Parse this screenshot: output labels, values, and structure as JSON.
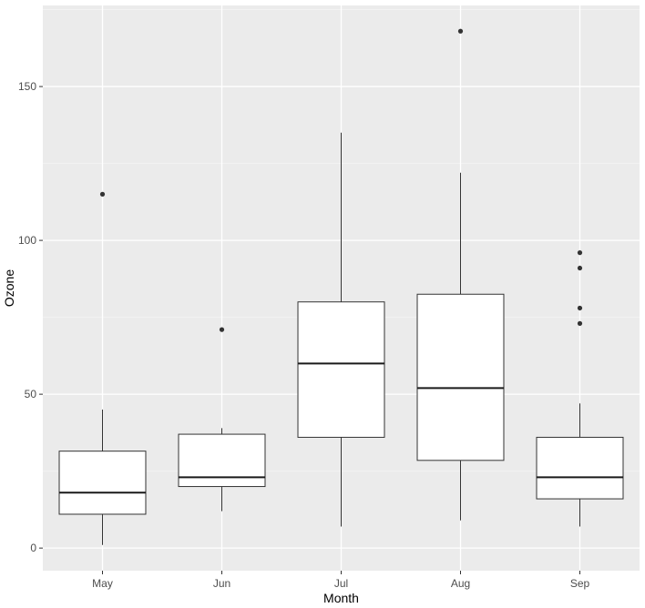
{
  "chart_data": {
    "type": "boxplot",
    "title": "",
    "xlabel": "Month",
    "ylabel": "Ozone",
    "categories": [
      "May",
      "Jun",
      "Jul",
      "Aug",
      "Sep"
    ],
    "boxes": [
      {
        "category": "May",
        "whisker_low": 1,
        "q1": 11,
        "median": 18,
        "q3": 31.5,
        "whisker_high": 45,
        "outliers": [
          115
        ]
      },
      {
        "category": "Jun",
        "whisker_low": 12,
        "q1": 20,
        "median": 23,
        "q3": 37,
        "whisker_high": 39,
        "outliers": [
          71
        ]
      },
      {
        "category": "Jul",
        "whisker_low": 7,
        "q1": 36,
        "median": 60,
        "q3": 80,
        "whisker_high": 135,
        "outliers": []
      },
      {
        "category": "Aug",
        "whisker_low": 9,
        "q1": 28.5,
        "median": 52,
        "q3": 82.5,
        "whisker_high": 122,
        "outliers": [
          168
        ]
      },
      {
        "category": "Sep",
        "whisker_low": 7,
        "q1": 16,
        "median": 23,
        "q3": 36,
        "whisker_high": 47,
        "outliers": [
          73,
          78,
          91,
          96
        ]
      }
    ],
    "y_ticks": [
      0,
      50,
      100,
      150
    ],
    "ylim": [
      -7.35,
      176.35
    ],
    "grid": true,
    "legend": "none",
    "colors": {
      "panel_background": "#ebebeb",
      "grid_major": "#ffffff",
      "grid_minor": "#f4f4f4",
      "box_fill": "#ffffff",
      "box_stroke": "#333333",
      "median": "#1a1a1a",
      "outlier": "#333333",
      "tick_label": "#4d4d4d",
      "tick_mark": "#333333",
      "axis_title": "#000000"
    }
  }
}
